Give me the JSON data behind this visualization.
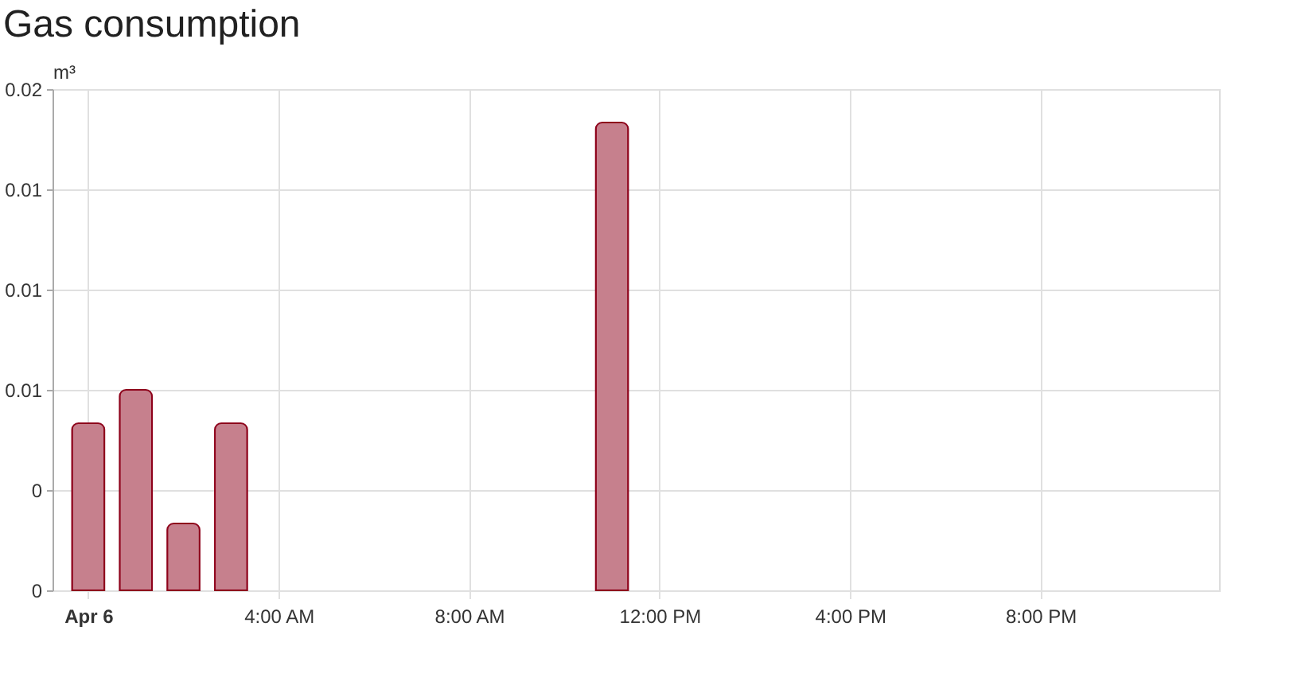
{
  "chart_data": {
    "type": "bar",
    "title": "Gas consumption",
    "ylabel": "m³",
    "x": [
      0,
      1,
      2,
      3,
      11
    ],
    "series": [
      {
        "color": "#8e021b",
        "values": [
          0.005,
          0.006,
          0.002,
          0.005,
          0.014
        ]
      }
    ],
    "xlim": [
      -0.75,
      23.75
    ],
    "xticks": [
      {
        "value": 0,
        "label": "Apr 6"
      },
      {
        "value": 4,
        "label": "4:00 AM"
      },
      {
        "value": 8,
        "label": "8:00 AM"
      },
      {
        "value": 12,
        "label": "12:00 PM"
      },
      {
        "value": 16,
        "label": "4:00 PM"
      },
      {
        "value": 20,
        "label": "8:00 PM"
      }
    ],
    "ylim": [
      0,
      0.015
    ],
    "yticks": [
      0,
      {
        "value": 0.003,
        "label": "0"
      },
      {
        "value": 0.006,
        "label": "0.01"
      },
      {
        "value": 0.009,
        "label": "0.01"
      },
      {
        "value": 0.012,
        "label": "0.01"
      },
      {
        "value": 0.015,
        "label": "0.02"
      }
    ],
    "grid": true
  }
}
